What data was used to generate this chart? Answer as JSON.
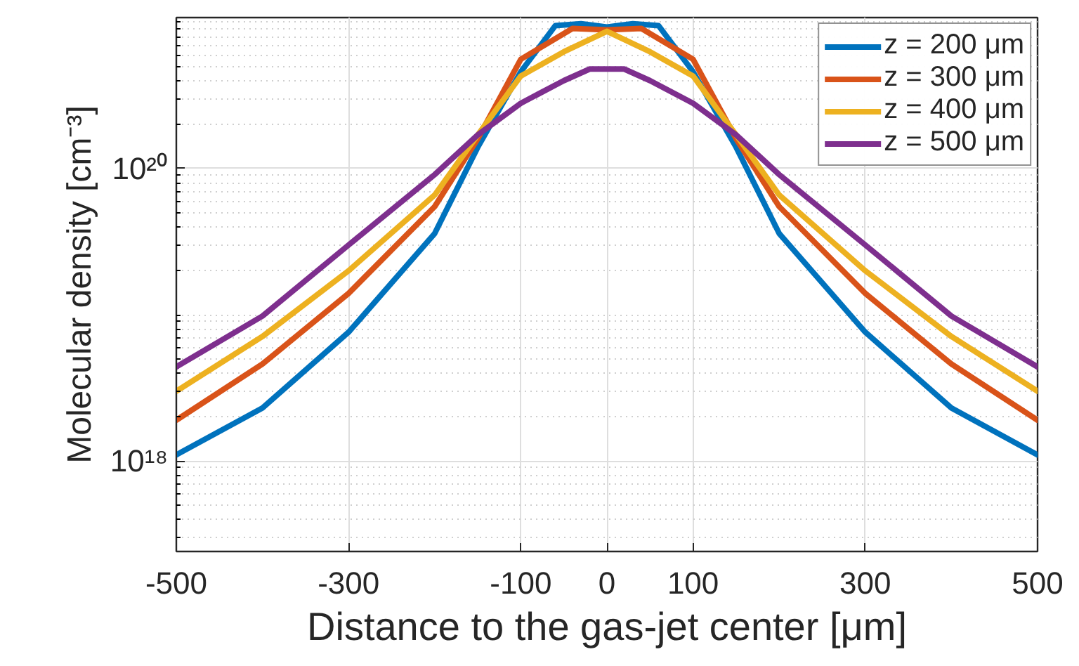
{
  "chart_data": {
    "type": "line",
    "xlabel": "Distance to the gas-jet center [μm]",
    "ylabel": "Molecular density [cm⁻³]",
    "log": "y",
    "grid": true,
    "legend": "top right",
    "line_style": "solid",
    "marker": "none",
    "xlim": [
      -500,
      500
    ],
    "xticks": [
      -500,
      -300,
      -100,
      0,
      100,
      300,
      500
    ],
    "ylim": [
      2.4e+17,
      1.08e+21
    ],
    "yticks": [
      {
        "value": 1e+18,
        "label": "10¹⁸"
      },
      {
        "value": 1e+20,
        "label": "10²⁰"
      }
    ],
    "series": [
      {
        "name": "z = 200 μm",
        "color": "#0072bd",
        "x": [
          -500,
          -400,
          -300,
          -200,
          -150,
          -100,
          -60,
          -30,
          0,
          30,
          60,
          100,
          150,
          200,
          300,
          400,
          500
        ],
        "values": [
          1.1e+18,
          2.3e+18,
          7.6e+18,
          3.6e+19,
          1.4e+20,
          4.6e+20,
          9.5e+20,
          9.8e+20,
          9.3e+20,
          9.8e+20,
          9.5e+20,
          4.6e+20,
          1.4e+20,
          3.6e+19,
          7.6e+18,
          2.3e+18,
          1.1e+18
        ]
      },
      {
        "name": "z = 300 μm",
        "color": "#d95319",
        "x": [
          -500,
          -400,
          -300,
          -200,
          -150,
          -100,
          -40,
          0,
          40,
          100,
          150,
          200,
          300,
          400,
          500
        ],
        "values": [
          1.9e+18,
          4.6e+18,
          1.4e+19,
          5.5e+19,
          1.6e+20,
          5.6e+20,
          9.1e+20,
          8.9e+20,
          9.1e+20,
          5.6e+20,
          1.6e+20,
          5.5e+19,
          1.4e+19,
          4.6e+18,
          1.9e+18
        ]
      },
      {
        "name": "z = 400 μm",
        "color": "#edb120",
        "x": [
          -500,
          -400,
          -300,
          -200,
          -150,
          -100,
          -50,
          0,
          50,
          100,
          150,
          200,
          300,
          400,
          500
        ],
        "values": [
          3e+18,
          7.1e+18,
          2e+19,
          6.6e+19,
          1.7e+20,
          4.3e+20,
          6.3e+20,
          8.7e+20,
          6.3e+20,
          4.3e+20,
          1.7e+20,
          6.6e+19,
          2e+19,
          7.1e+18,
          3e+18
        ]
      },
      {
        "name": "z = 500 μm",
        "color": "#7e2f8e",
        "x": [
          -500,
          -400,
          -300,
          -200,
          -150,
          -100,
          -50,
          -20,
          20,
          50,
          100,
          150,
          200,
          300,
          400,
          500
        ],
        "values": [
          4.4e+18,
          9.8e+18,
          3e+19,
          9.1e+19,
          1.7e+20,
          2.8e+20,
          4e+20,
          4.8e+20,
          4.8e+20,
          4e+20,
          2.8e+20,
          1.7e+20,
          9.1e+19,
          3e+19,
          9.8e+18,
          4.4e+18
        ]
      }
    ]
  }
}
